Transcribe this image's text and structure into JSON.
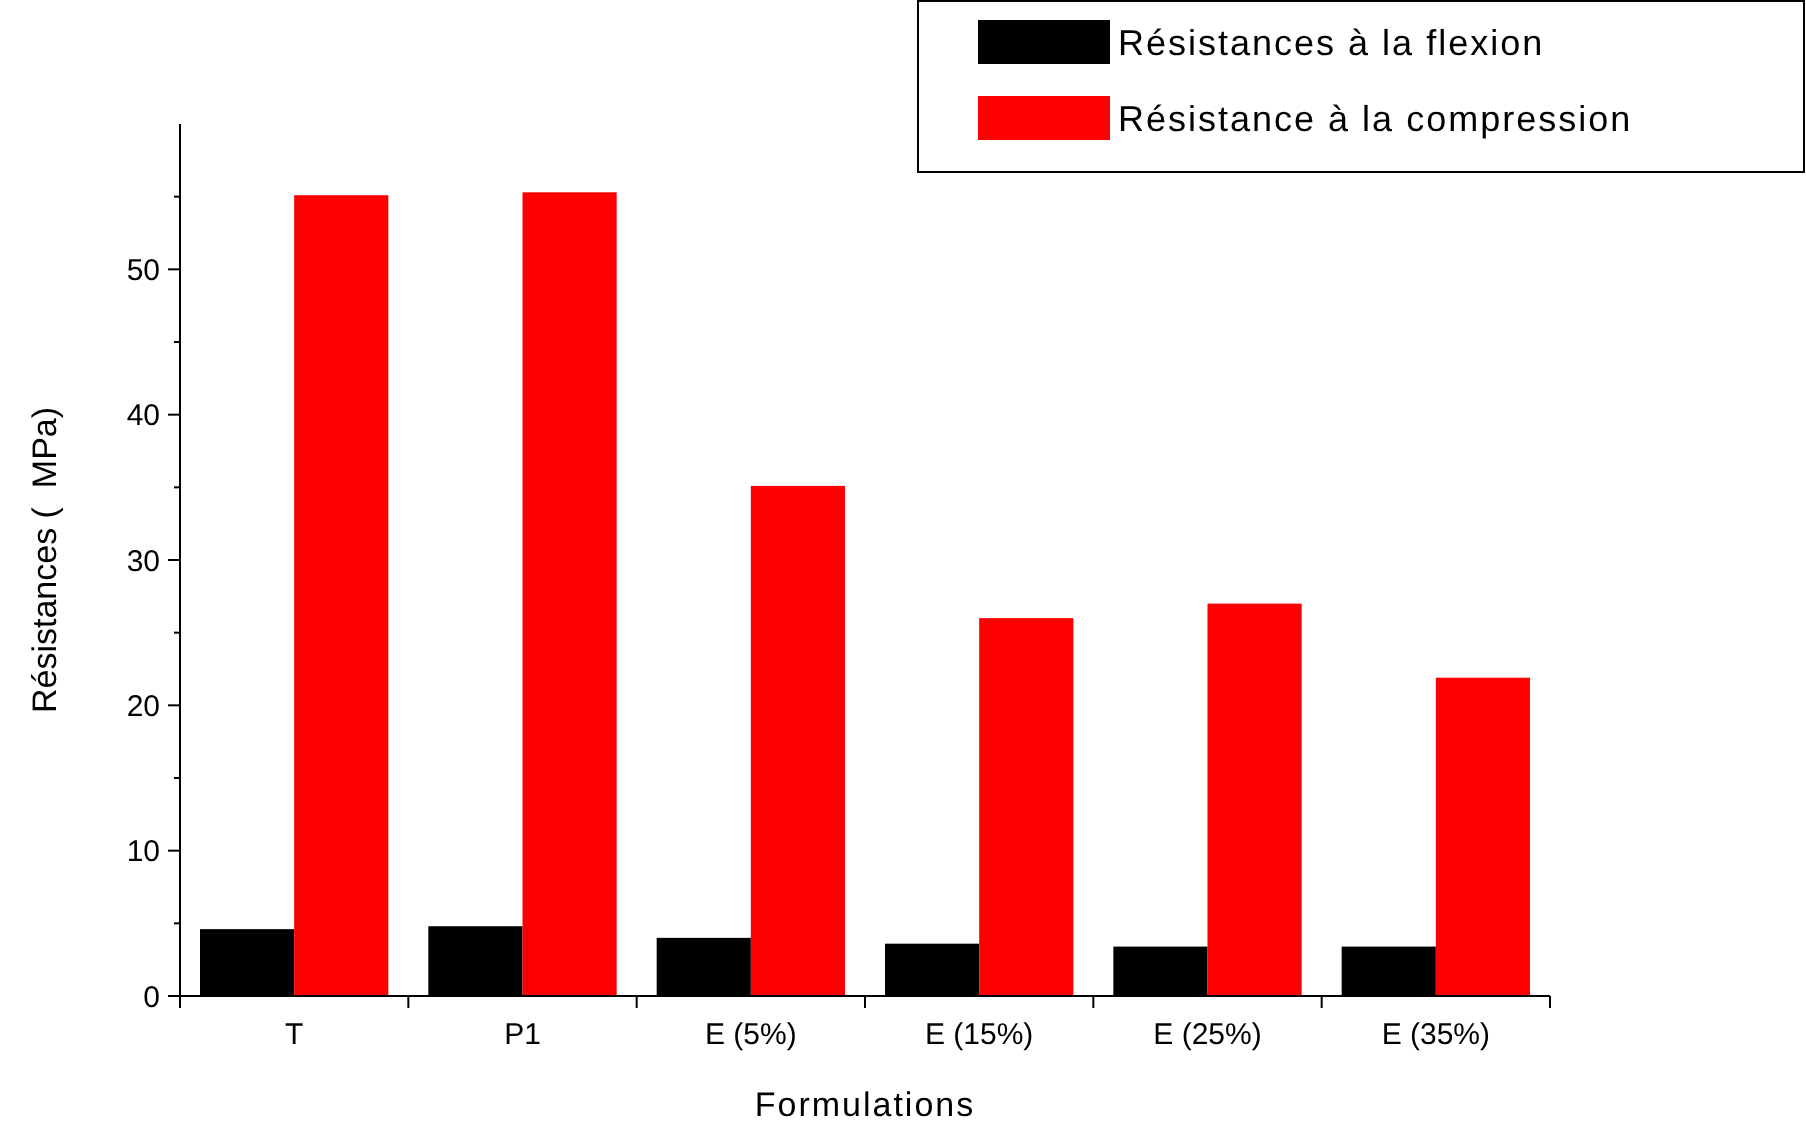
{
  "chart_data": {
    "type": "bar",
    "xlabel": "Formulations",
    "ylabel": "Résistances (  MPa)",
    "categories": [
      "T",
      "P1",
      "E (5%)",
      "E (15%)",
      "E (25%)",
      "E (35%)"
    ],
    "series": [
      {
        "name": "Résistances à la flexion",
        "color": "#000000",
        "values": [
          4.6,
          4.8,
          4.0,
          3.6,
          3.4,
          3.4
        ]
      },
      {
        "name": "Résistance à la compression",
        "color": "#ff0000",
        "values": [
          55.1,
          55.3,
          35.1,
          26.0,
          27.0,
          21.9
        ]
      }
    ],
    "ylim": [
      0,
      60
    ],
    "yticks": [
      0,
      {
        "value": 5,
        "label": null
      },
      10,
      {
        "value": 15,
        "label": null
      },
      20,
      {
        "value": 25,
        "label": null
      },
      30,
      {
        "value": 35,
        "label": null
      },
      40,
      {
        "value": 45,
        "label": null
      },
      50,
      {
        "value": 55,
        "label": null
      }
    ],
    "grid": false,
    "legend": "top right"
  }
}
